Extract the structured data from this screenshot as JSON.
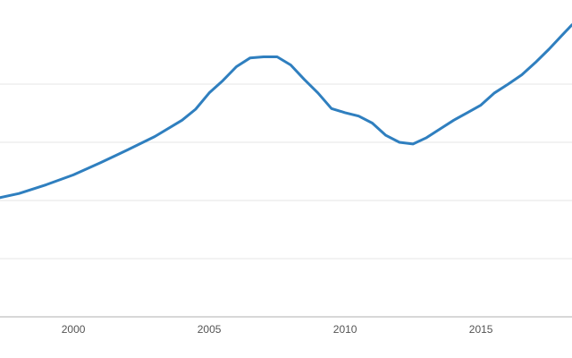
{
  "chart_data": {
    "type": "line",
    "title": "",
    "xlabel": "",
    "ylabel": "",
    "x_ticks": [
      2000,
      2005,
      2010,
      2015
    ],
    "xlim": [
      1997.3,
      2018.35
    ],
    "ylim": [
      0,
      5
    ],
    "y_gridlines": [
      1,
      2,
      3,
      4
    ],
    "grid": true,
    "legend": "none",
    "series": [
      {
        "color": "#2f7fbf",
        "points": [
          [
            1997.3,
            2.05
          ],
          [
            1998.0,
            2.12
          ],
          [
            1999.0,
            2.27
          ],
          [
            2000.0,
            2.44
          ],
          [
            2001.0,
            2.65
          ],
          [
            2002.0,
            2.87
          ],
          [
            2003.0,
            3.1
          ],
          [
            2004.0,
            3.38
          ],
          [
            2004.5,
            3.57
          ],
          [
            2005.0,
            3.85
          ],
          [
            2005.5,
            4.06
          ],
          [
            2006.0,
            4.3
          ],
          [
            2006.5,
            4.45
          ],
          [
            2007.0,
            4.47
          ],
          [
            2007.5,
            4.47
          ],
          [
            2008.0,
            4.33
          ],
          [
            2008.5,
            4.08
          ],
          [
            2009.0,
            3.85
          ],
          [
            2009.5,
            3.58
          ],
          [
            2010.0,
            3.51
          ],
          [
            2010.5,
            3.45
          ],
          [
            2011.0,
            3.33
          ],
          [
            2011.5,
            3.12
          ],
          [
            2012.0,
            3.0
          ],
          [
            2012.5,
            2.97
          ],
          [
            2013.0,
            3.08
          ],
          [
            2013.5,
            3.23
          ],
          [
            2014.0,
            3.38
          ],
          [
            2014.5,
            3.51
          ],
          [
            2015.0,
            3.64
          ],
          [
            2015.5,
            3.85
          ],
          [
            2016.0,
            4.0
          ],
          [
            2016.5,
            4.16
          ],
          [
            2017.0,
            4.37
          ],
          [
            2017.5,
            4.6
          ],
          [
            2018.0,
            4.85
          ],
          [
            2018.35,
            5.02
          ]
        ]
      }
    ]
  }
}
